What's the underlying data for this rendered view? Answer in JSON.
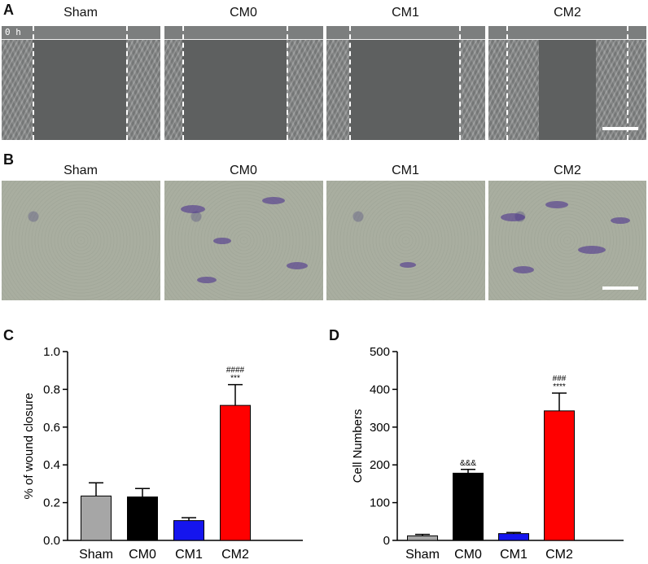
{
  "panels": {
    "A": {
      "letter": "A",
      "labels": [
        "Sham",
        "CM0",
        "CM1",
        "CM2"
      ],
      "time_label": "0 h"
    },
    "B": {
      "letter": "B",
      "labels": [
        "Sham",
        "CM0",
        "CM1",
        "CM2"
      ]
    },
    "C": {
      "letter": "C"
    },
    "D": {
      "letter": "D"
    }
  },
  "colors": {
    "Sham": "#a6a6a6",
    "CM0": "#000000",
    "CM1": "#1515ee",
    "CM2": "#ff0000"
  },
  "chart_data": [
    {
      "id": "C",
      "type": "bar",
      "categories": [
        "Sham",
        "CM0",
        "CM1",
        "CM2"
      ],
      "values": [
        0.235,
        0.23,
        0.105,
        0.715
      ],
      "errors": [
        0.07,
        0.045,
        0.015,
        0.11
      ],
      "annotations": [
        "",
        "",
        "",
        "####\n***"
      ],
      "title": "",
      "xlabel": "",
      "ylabel": "% of wound closure",
      "ylim": [
        0,
        1.0
      ],
      "yticks": [
        "0.0",
        "0.2",
        "0.4",
        "0.6",
        "0.8",
        "1.0"
      ],
      "tick_values": [
        0,
        0.2,
        0.4,
        0.6,
        0.8,
        1.0
      ],
      "grid": false
    },
    {
      "id": "D",
      "type": "bar",
      "categories": [
        "Sham",
        "CM0",
        "CM1",
        "CM2"
      ],
      "values": [
        12,
        178,
        18,
        343
      ],
      "errors": [
        4,
        10,
        3,
        47
      ],
      "annotations": [
        "",
        "&&&",
        "",
        "###\n****"
      ],
      "title": "",
      "xlabel": "",
      "ylabel": "Cell Numbers",
      "ylim": [
        0,
        500
      ],
      "yticks": [
        "0",
        "100",
        "200",
        "300",
        "400",
        "500"
      ],
      "tick_values": [
        0,
        100,
        200,
        300,
        400,
        500
      ],
      "grid": false
    }
  ]
}
